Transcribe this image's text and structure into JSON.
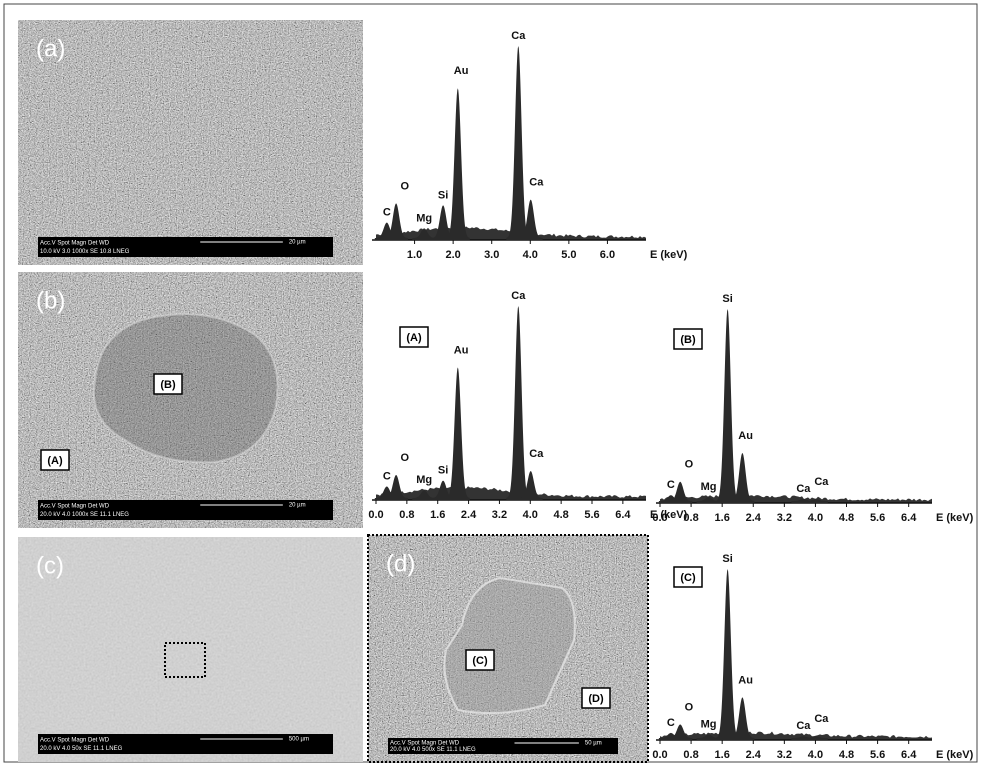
{
  "panels": [
    {
      "label": "(a)",
      "info": [
        "Acc.V Spot Magn Det WD",
        "10.0 kV 3.0 1000x SE 10.8 LNEG"
      ],
      "scale": "20 µm"
    },
    {
      "label": "(b)",
      "info": [
        "Acc.V Spot Magn Det WD",
        "20.0 kV 4.0 1000x SE 11.1 LNEG"
      ],
      "scale": "20 µm"
    },
    {
      "label": "(c)",
      "info": [
        "Acc.V Spot Magn Det WD",
        "20.0 kV 4.0 50x SE 11.1 LNEG"
      ],
      "scale": "500 µm"
    },
    {
      "label": "(d)",
      "info": [
        "Acc.V Spot Magn Det WD",
        "20.0 kV 4.0 500x SE 11.1 LNEG"
      ],
      "scale": "50 µm"
    }
  ],
  "annotations": [
    "(B)",
    "(A)",
    "(C)",
    "(D)"
  ],
  "spectra": [
    {
      "axis_label": "E (keV)",
      "xlim": [
        0,
        7
      ],
      "xticks": [
        {
          "value": 1,
          "label": "1.0"
        },
        {
          "value": 2,
          "label": "2.0"
        },
        {
          "value": 3,
          "label": "3.0"
        },
        {
          "value": 4,
          "label": "4.0"
        },
        {
          "value": 5,
          "label": "5.0"
        },
        {
          "value": 6,
          "label": "6.0"
        }
      ],
      "peaks": [
        {
          "element": "C",
          "energy": 0.28,
          "intensity": 8
        },
        {
          "element": "O",
          "energy": 0.52,
          "intensity": 18
        },
        {
          "element": "Mg",
          "energy": 1.25,
          "intensity": 5
        },
        {
          "element": "Si",
          "energy": 1.74,
          "intensity": 17
        },
        {
          "element": "Au",
          "energy": 2.12,
          "intensity": 78
        },
        {
          "element": "Ca",
          "energy": 3.69,
          "intensity": 100
        },
        {
          "element": "Ca",
          "energy": 4.01,
          "intensity": 20
        }
      ]
    },
    {
      "label": "(A)",
      "axis_label": "E (keV)",
      "xlim": [
        0,
        7
      ],
      "xticks": [
        {
          "value": 0,
          "label": "0.0"
        },
        0.8,
        1.6,
        2.4,
        3.2,
        {
          "value": 4,
          "label": "4.0"
        },
        4.8,
        5.6,
        6.4
      ],
      "peaks": [
        {
          "element": "C",
          "energy": 0.28,
          "intensity": 6
        },
        {
          "element": "O",
          "energy": 0.52,
          "intensity": 12
        },
        {
          "element": "Mg",
          "energy": 1.25,
          "intensity": 4
        },
        {
          "element": "Si",
          "energy": 1.74,
          "intensity": 9
        },
        {
          "element": "Au",
          "energy": 2.12,
          "intensity": 68
        },
        {
          "element": "Ca",
          "energy": 3.69,
          "intensity": 100
        },
        {
          "element": "Ca",
          "energy": 4.01,
          "intensity": 14
        }
      ]
    },
    {
      "label": "(B)",
      "axis_label": "E (keV)",
      "xlim": [
        0,
        7
      ],
      "xticks": [
        {
          "value": 0,
          "label": "0.0"
        },
        0.8,
        1.6,
        2.4,
        3.2,
        {
          "value": 4,
          "label": "4.0"
        },
        4.8,
        5.6,
        6.4
      ],
      "peaks": [
        {
          "element": "C",
          "energy": 0.28,
          "intensity": 3
        },
        {
          "element": "O",
          "energy": 0.52,
          "intensity": 10
        },
        {
          "element": "Mg",
          "energy": 1.25,
          "intensity": 2
        },
        {
          "element": "Si",
          "energy": 1.74,
          "intensity": 100
        },
        {
          "element": "Au",
          "energy": 2.12,
          "intensity": 25
        },
        {
          "element": "Ca",
          "energy": 3.69,
          "intensity": 1
        },
        {
          "element": "Ca",
          "energy": 4.01,
          "intensity": 1
        }
      ]
    },
    {
      "label": "(C)",
      "axis_label": "E (keV)",
      "xlim": [
        0,
        7
      ],
      "xticks": [
        {
          "value": 0,
          "label": "0.0"
        },
        0.8,
        1.6,
        2.4,
        3.2,
        {
          "value": 4,
          "label": "4.0"
        },
        4.8,
        5.6,
        6.4
      ],
      "peaks": [
        {
          "element": "C",
          "energy": 0.28,
          "intensity": 3
        },
        {
          "element": "O",
          "energy": 0.52,
          "intensity": 8
        },
        {
          "element": "Mg",
          "energy": 1.25,
          "intensity": 2
        },
        {
          "element": "Si",
          "energy": 1.74,
          "intensity": 100
        },
        {
          "element": "Au",
          "energy": 2.12,
          "intensity": 24
        },
        {
          "element": "Ca",
          "energy": 3.69,
          "intensity": 1
        },
        {
          "element": "Ca",
          "energy": 4.01,
          "intensity": 1
        }
      ]
    }
  ]
}
